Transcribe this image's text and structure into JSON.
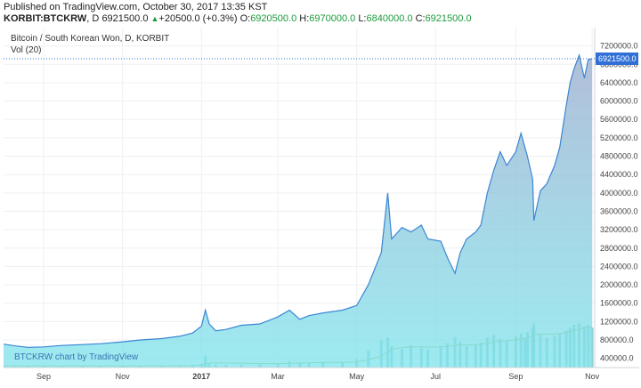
{
  "header": {
    "published_line": "Published on TradingView.com, October 30, 2017 13:35 KST",
    "symbol": "KORBIT:BTCKRW",
    "interval": "D",
    "last": "6921500.0",
    "change_arrow": "▲",
    "change": "+20500.0 (+0.3%)",
    "open_key": "O:",
    "open": "6920500.0",
    "high_key": "H:",
    "high": "6970000.0",
    "low_key": "L:",
    "low": "6840000.0",
    "close_key": "C:",
    "close": "6921500.0"
  },
  "chart": {
    "legend_title": "Bitcoin / South Korean Won, D, KORBIT",
    "legend_vol": "Vol (20)",
    "watermark": "BTCKRW chart by TradingView",
    "price_label": "6921500.0",
    "colors": {
      "area_fill_top": "#9fb0d0",
      "area_fill_bottom": "#7fe4ec",
      "price_line": "#3a86d4",
      "volume_bar": "#6fc6c6",
      "volume_ma": "#9ac86a",
      "price_label_bg": "#2f6fd6",
      "grid": "#eef0f3",
      "axis_text": "#444444"
    }
  },
  "chart_data": {
    "type": "area",
    "title": "Bitcoin / South Korean Won, D, KORBIT",
    "xlabel": "",
    "ylabel": "",
    "x_ticks": [
      "Sep",
      "Nov",
      "2017",
      "Mar",
      "May",
      "Jul",
      "Sep",
      "Nov"
    ],
    "y_ticks": [
      400000,
      800000,
      1200000,
      1600000,
      2000000,
      2400000,
      2800000,
      3200000,
      3600000,
      4000000,
      4400000,
      4800000,
      5200000,
      5600000,
      6000000,
      6400000,
      6800000,
      7200000
    ],
    "ylim": [
      200000,
      7600000
    ],
    "xlim": [
      "2016-08-01",
      "2017-11-01"
    ],
    "grid": true,
    "series": [
      {
        "name": "BTCKRW",
        "x": [
          "2016-08-01",
          "2016-08-10",
          "2016-08-20",
          "2016-09-01",
          "2016-09-15",
          "2016-10-01",
          "2016-10-15",
          "2016-11-01",
          "2016-11-15",
          "2016-12-01",
          "2016-12-15",
          "2016-12-25",
          "2017-01-01",
          "2017-01-04",
          "2017-01-07",
          "2017-01-12",
          "2017-01-20",
          "2017-02-01",
          "2017-02-15",
          "2017-03-01",
          "2017-03-10",
          "2017-03-18",
          "2017-03-25",
          "2017-04-05",
          "2017-04-20",
          "2017-05-01",
          "2017-05-10",
          "2017-05-20",
          "2017-05-25",
          "2017-05-28",
          "2017-06-05",
          "2017-06-12",
          "2017-06-20",
          "2017-06-25",
          "2017-07-05",
          "2017-07-10",
          "2017-07-16",
          "2017-07-20",
          "2017-07-25",
          "2017-08-01",
          "2017-08-05",
          "2017-08-10",
          "2017-08-15",
          "2017-08-20",
          "2017-08-25",
          "2017-09-01",
          "2017-09-05",
          "2017-09-08",
          "2017-09-10",
          "2017-09-14",
          "2017-09-15",
          "2017-09-20",
          "2017-09-25",
          "2017-10-01",
          "2017-10-05",
          "2017-10-10",
          "2017-10-13",
          "2017-10-16",
          "2017-10-20",
          "2017-10-24",
          "2017-10-27",
          "2017-10-30"
        ],
        "values": [
          710000,
          670000,
          640000,
          650000,
          680000,
          700000,
          720000,
          760000,
          800000,
          830000,
          880000,
          950000,
          1100000,
          1450000,
          1150000,
          1000000,
          1030000,
          1120000,
          1150000,
          1300000,
          1450000,
          1250000,
          1330000,
          1390000,
          1450000,
          1550000,
          2000000,
          2700000,
          4000000,
          3000000,
          3250000,
          3150000,
          3300000,
          3000000,
          2950000,
          2600000,
          2250000,
          2700000,
          3000000,
          3150000,
          3300000,
          4000000,
          4500000,
          4900000,
          4600000,
          4900000,
          5300000,
          5000000,
          4800000,
          4300000,
          3400000,
          4050000,
          4200000,
          4600000,
          5000000,
          5900000,
          6400000,
          6700000,
          7000000,
          6500000,
          6900000,
          6921500
        ]
      }
    ],
    "volume": {
      "name": "Vol (20)",
      "ylim": [
        0,
        1000
      ],
      "values": [
        22,
        18,
        25,
        20,
        17,
        23,
        19,
        24,
        21,
        26,
        28,
        35,
        48,
        170,
        60,
        45,
        38,
        40,
        44,
        55,
        90,
        70,
        65,
        72,
        80,
        120,
        240,
        380,
        420,
        300,
        260,
        310,
        280,
        250,
        300,
        340,
        420,
        360,
        300,
        320,
        350,
        420,
        460,
        400,
        380,
        440,
        480,
        420,
        500,
        560,
        620,
        460,
        420,
        440,
        470,
        520,
        560,
        600,
        620,
        580,
        600,
        560
      ],
      "ma_values": [
        24,
        23,
        22,
        21,
        21,
        21,
        21,
        21,
        22,
        23,
        24,
        26,
        34,
        55,
        62,
        66,
        64,
        60,
        56,
        55,
        60,
        63,
        66,
        70,
        72,
        80,
        110,
        160,
        220,
        260,
        280,
        290,
        290,
        288,
        290,
        296,
        310,
        320,
        318,
        320,
        326,
        340,
        360,
        372,
        376,
        390,
        404,
        410,
        422,
        440,
        466,
        470,
        470,
        472,
        478,
        490,
        504,
        522,
        540,
        552,
        566,
        570
      ]
    }
  }
}
